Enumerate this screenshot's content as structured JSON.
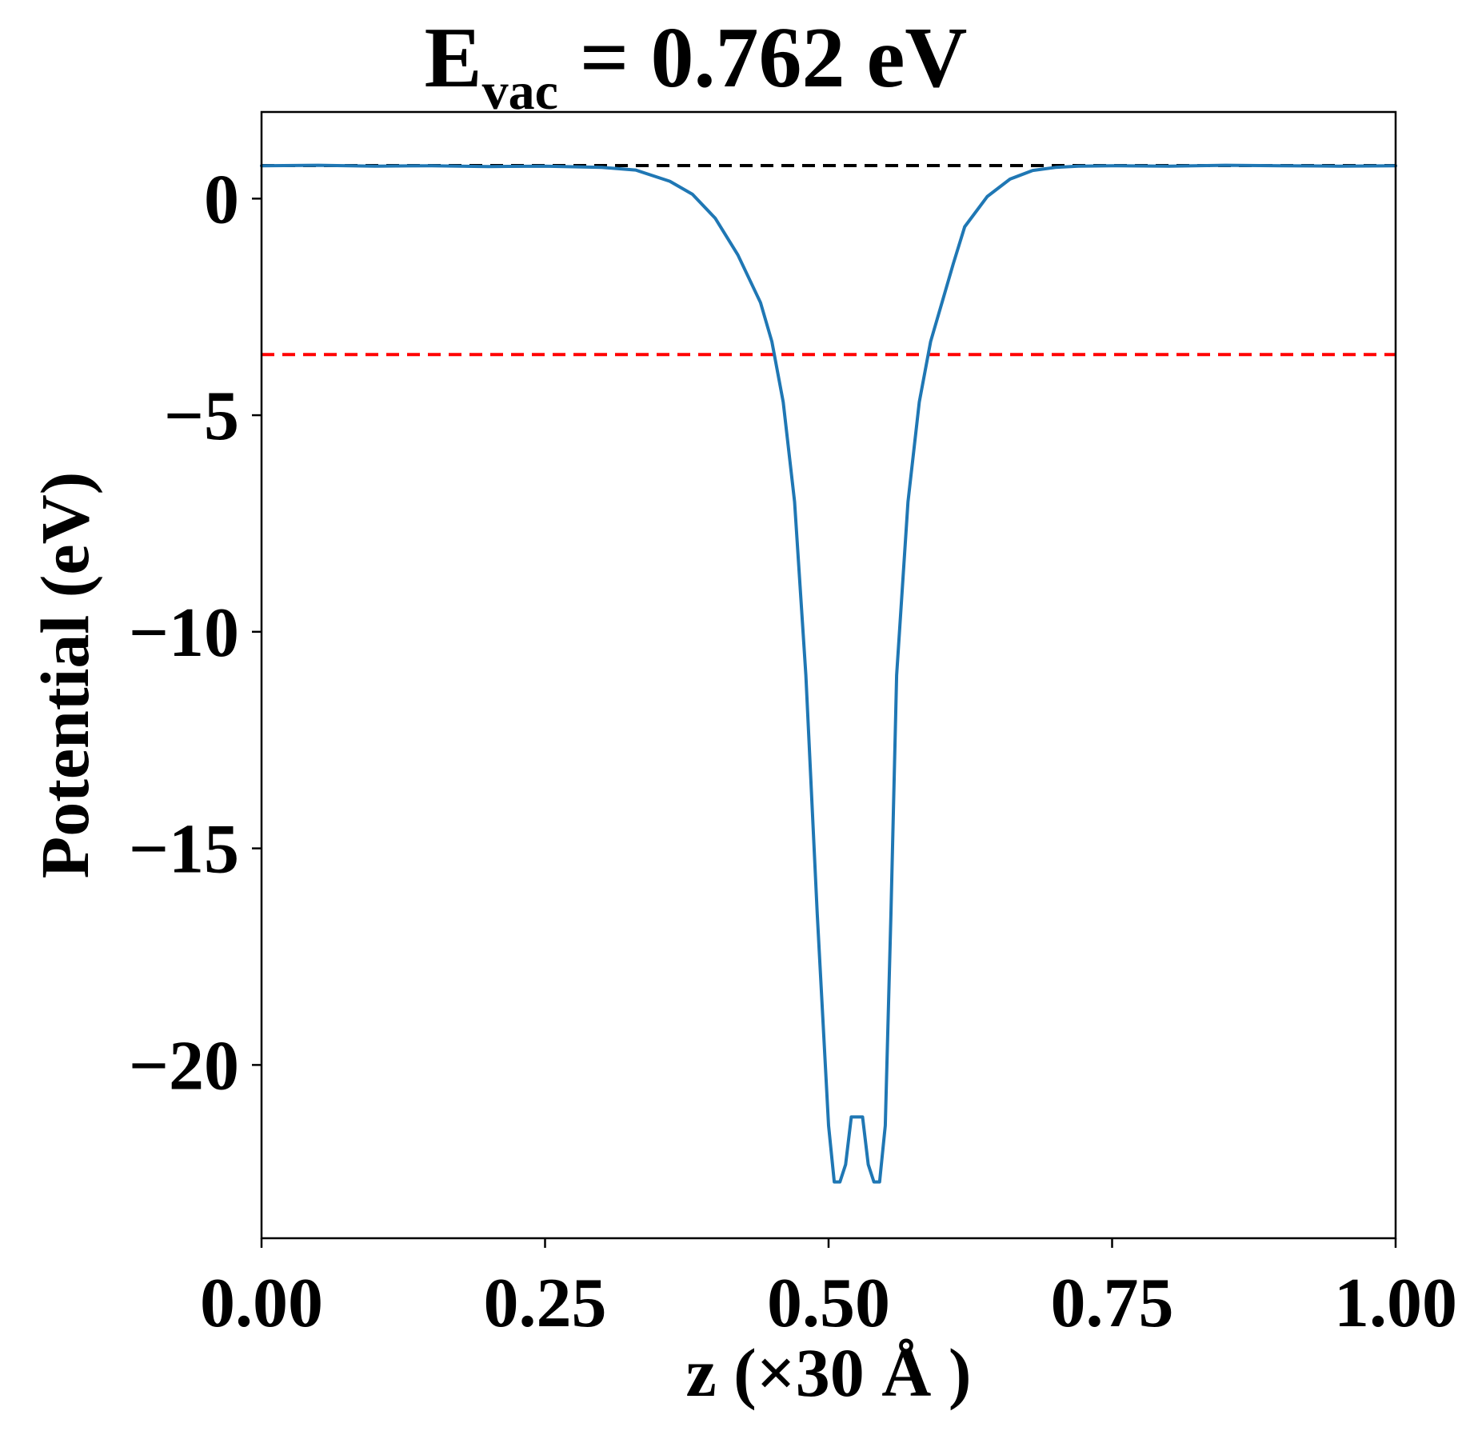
{
  "chart_data": {
    "type": "line",
    "title": {
      "main": "E",
      "subscript": "vac",
      "rest": " = 0.762 eV"
    },
    "xlabel": "z (×30 Å )",
    "ylabel": "Potential (eV)",
    "xlim": [
      0,
      1
    ],
    "ylim": [
      -24.0,
      2.0
    ],
    "xticks": [
      0,
      0.25,
      0.5,
      0.75,
      1.0
    ],
    "xtick_labels": [
      "0.00",
      "0.25",
      "0.50",
      "0.75",
      "1.00"
    ],
    "yticks": [
      0,
      -5,
      -10,
      -15,
      -20
    ],
    "ytick_labels": [
      "0",
      "−5",
      "−10",
      "−15",
      "−20"
    ],
    "grid": false,
    "reference_lines": [
      {
        "kind": "vacuum level",
        "y": 0.762,
        "color": "#000000",
        "style": "dashed"
      },
      {
        "kind": "fermi level",
        "y": -3.6,
        "color": "#ff0000",
        "style": "dashed"
      }
    ],
    "series": [
      {
        "color": "#1f77b4",
        "x": [
          0.0,
          0.05,
          0.1,
          0.15,
          0.2,
          0.25,
          0.3,
          0.33,
          0.36,
          0.38,
          0.4,
          0.42,
          0.44,
          0.45,
          0.46,
          0.47,
          0.48,
          0.49,
          0.5,
          0.505,
          0.51,
          0.515,
          0.52,
          0.525,
          0.53,
          0.535,
          0.54,
          0.545,
          0.55,
          0.555,
          0.56,
          0.57,
          0.58,
          0.59,
          0.6,
          0.61,
          0.62,
          0.64,
          0.66,
          0.68,
          0.7,
          0.72,
          0.75,
          0.8,
          0.85,
          0.9,
          0.95,
          1.0
        ],
        "y": [
          0.76,
          0.77,
          0.75,
          0.76,
          0.74,
          0.75,
          0.72,
          0.66,
          0.4,
          0.1,
          -0.45,
          -1.3,
          -2.4,
          -3.3,
          -4.7,
          -7.0,
          -11.0,
          -16.5,
          -21.4,
          -22.7,
          -22.7,
          -22.3,
          -21.2,
          -21.2,
          -21.2,
          -22.3,
          -22.7,
          -22.7,
          -21.4,
          -16.5,
          -11.0,
          -7.0,
          -4.7,
          -3.3,
          -2.4,
          -1.5,
          -0.65,
          0.05,
          0.45,
          0.65,
          0.72,
          0.75,
          0.76,
          0.75,
          0.77,
          0.76,
          0.75,
          0.76
        ]
      }
    ]
  }
}
